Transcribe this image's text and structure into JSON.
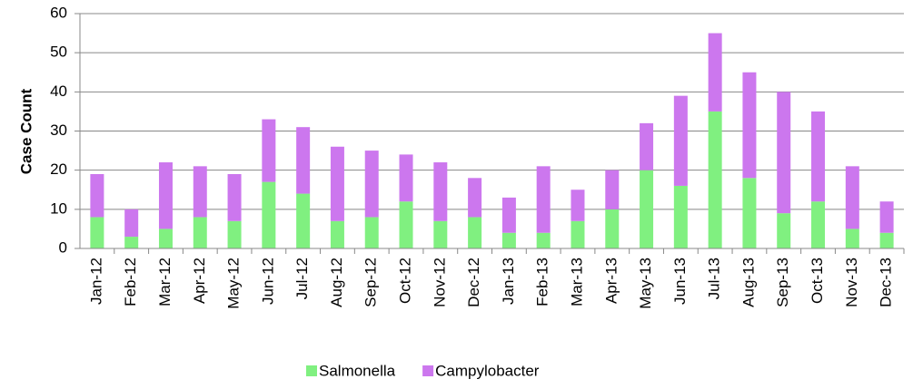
{
  "chart_data": {
    "type": "stacked_bar",
    "y_axis_label": "Case Count",
    "categories": [
      "Jan-12",
      "Feb-12",
      "Mar-12",
      "Apr-12",
      "May-12",
      "Jun-12",
      "Jul-12",
      "Aug-12",
      "Sep-12",
      "Oct-12",
      "Nov-12",
      "Dec-12",
      "Jan-13",
      "Feb-13",
      "Mar-13",
      "Apr-13",
      "May-13",
      "Jun-13",
      "Jul-13",
      "Aug-13",
      "Sep-13",
      "Oct-13",
      "Nov-13",
      "Dec-13"
    ],
    "series": [
      {
        "name": "Salmonella",
        "color": "#80f080",
        "values": [
          8,
          3,
          5,
          8,
          7,
          17,
          14,
          7,
          8,
          12,
          7,
          8,
          4,
          4,
          7,
          10,
          20,
          16,
          35,
          18,
          9,
          12,
          5,
          4
        ]
      },
      {
        "name": "Campylobacter",
        "color": "#cc77ee",
        "values": [
          11,
          7,
          17,
          13,
          12,
          16,
          17,
          19,
          17,
          12,
          15,
          10,
          9,
          17,
          8,
          10,
          12,
          23,
          20,
          27,
          31,
          23,
          16,
          8
        ]
      }
    ],
    "ylim": [
      0,
      60
    ],
    "yticks": [
      0,
      10,
      20,
      30,
      40,
      50,
      60
    ],
    "grid": true,
    "legend": "bottom"
  }
}
